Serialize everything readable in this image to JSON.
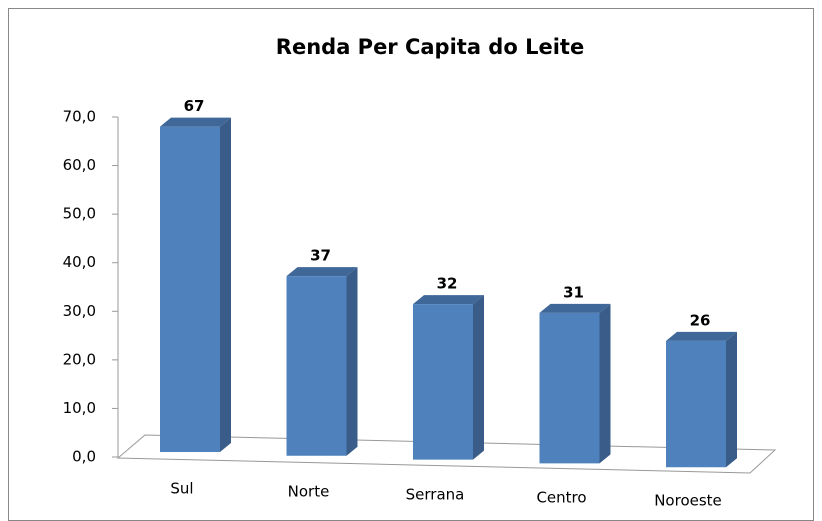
{
  "chart_data": {
    "type": "bar3d",
    "title": "Renda Per Capita do Leite",
    "categories": [
      "Sul",
      "Norte",
      "Serrana",
      "Centro",
      "Noroeste"
    ],
    "values": [
      67,
      37,
      32,
      31,
      26
    ],
    "color": "#4f81bd",
    "ylim": [
      0,
      70
    ],
    "yticks": [
      {
        "value": 0,
        "label": "0,0"
      },
      {
        "value": 10,
        "label": "10,0"
      },
      {
        "value": 20,
        "label": "20,0"
      },
      {
        "value": 30,
        "label": "30,0"
      },
      {
        "value": 40,
        "label": "40,0"
      },
      {
        "value": 50,
        "label": "50,0"
      },
      {
        "value": 60,
        "label": "60,0"
      },
      {
        "value": 70,
        "label": "70,0"
      }
    ]
  }
}
